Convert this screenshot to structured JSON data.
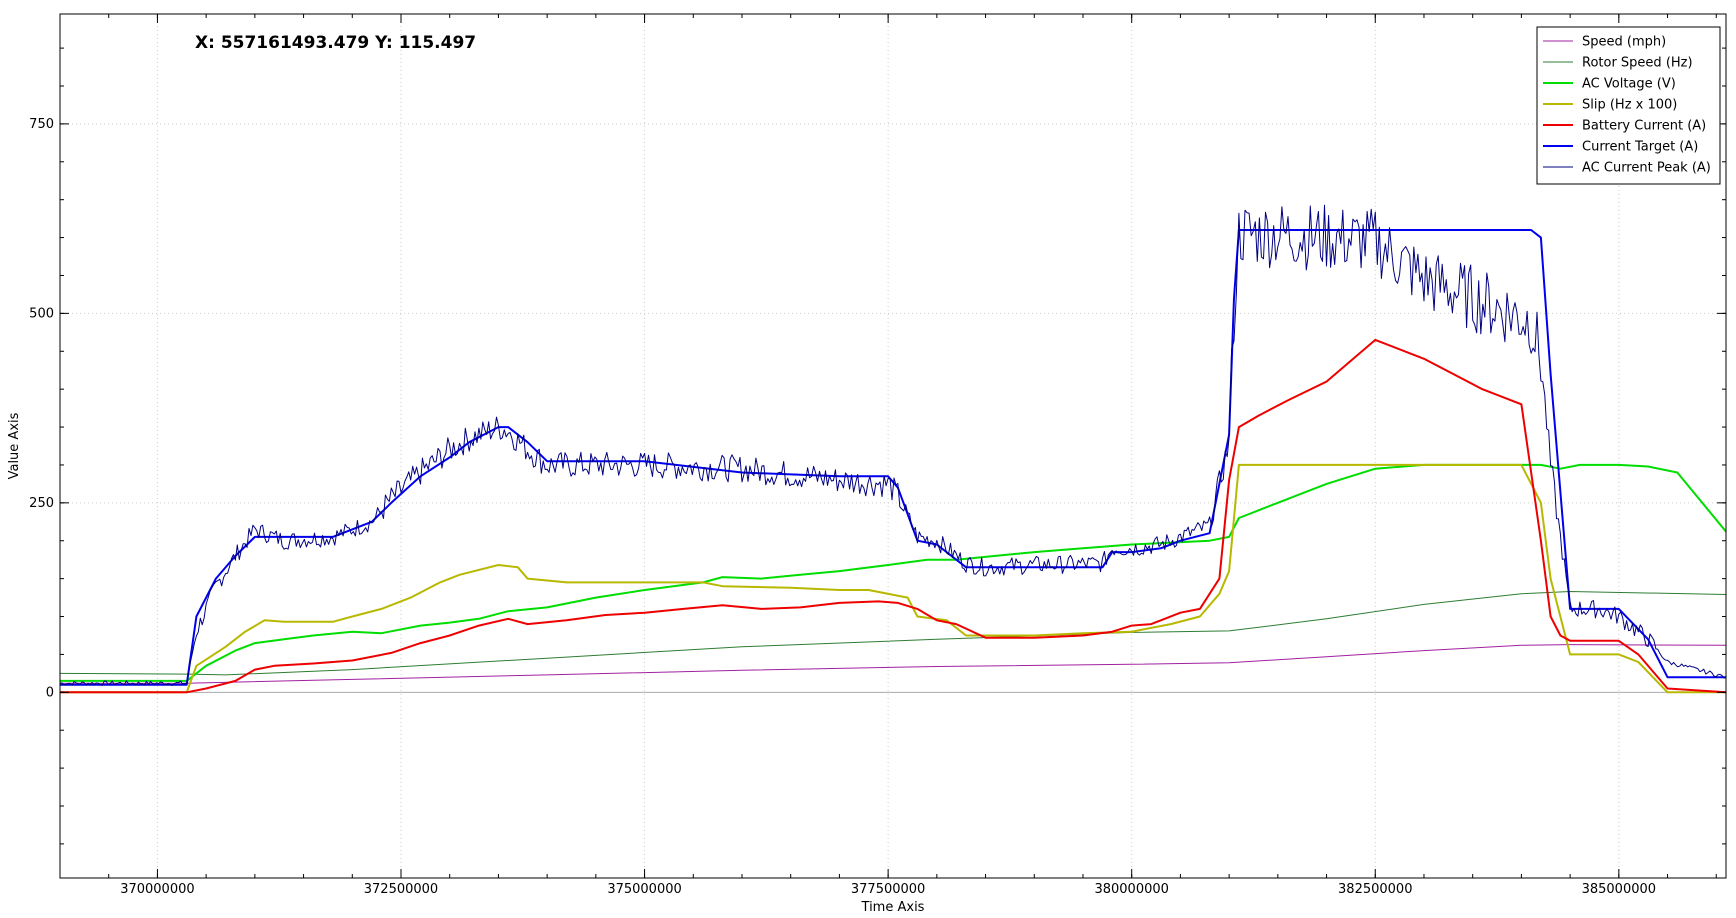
{
  "coordinate_readout": "X: 557161493.479 Y: 115.497",
  "chart_data": {
    "type": "line",
    "title": "",
    "xlabel": "Time Axis",
    "ylabel": "Value Axis",
    "xlim": [
      369000000,
      386100000
    ],
    "ylim": [
      -245,
      895
    ],
    "x_ticks": [
      370000000,
      372500000,
      375000000,
      377500000,
      380000000,
      382500000,
      385000000
    ],
    "x_tick_labels": [
      "370000000",
      "372500000",
      "375000000",
      "377500000",
      "380000000",
      "382500000",
      "385000000"
    ],
    "y_ticks": [
      0,
      250,
      500,
      750
    ],
    "y_tick_labels": [
      "0",
      "250",
      "500",
      "750"
    ],
    "grid": true,
    "legend_position": "top-right",
    "series": [
      {
        "name": "Speed (mph)",
        "color": "#a020a0",
        "width": 1,
        "x": [
          369000000,
          370300000,
          372000000,
          374000000,
          376000000,
          378000000,
          380000000,
          381000000,
          382000000,
          383000000,
          384000000,
          384500000,
          386100000
        ],
        "y": [
          12,
          12,
          17,
          23,
          29,
          34,
          37,
          39,
          47,
          55,
          62,
          63,
          62
        ]
      },
      {
        "name": "Rotor Speed (Hz)",
        "color": "#2e7d32",
        "width": 1,
        "x": [
          369000000,
          370300000,
          370700000,
          372000000,
          374000000,
          376000000,
          378000000,
          380000000,
          381000000,
          382000000,
          383000000,
          384000000,
          384500000,
          386100000
        ],
        "y": [
          25,
          24,
          23,
          30,
          45,
          60,
          70,
          79,
          81,
          97,
          116,
          130,
          133,
          129
        ]
      },
      {
        "name": "AC Voltage (V)",
        "color": "#00dd00",
        "width": 2,
        "x": [
          369000000,
          370300000,
          370500000,
          370800000,
          371000000,
          371300000,
          371600000,
          372000000,
          372300000,
          372700000,
          373000000,
          373300000,
          373600000,
          374000000,
          374500000,
          375000000,
          375600000,
          375800000,
          376200000,
          376600000,
          377000000,
          377500000,
          377900000,
          378200000,
          378600000,
          379000000,
          379500000,
          380000000,
          380800000,
          381000000,
          381100000,
          381500000,
          382000000,
          382500000,
          383000000,
          383500000,
          384200000,
          384400000,
          384600000,
          385000000,
          385300000,
          385600000,
          386100000
        ],
        "y": [
          15,
          15,
          35,
          55,
          65,
          70,
          75,
          80,
          78,
          88,
          92,
          97,
          107,
          112,
          125,
          135,
          145,
          152,
          150,
          155,
          160,
          168,
          175,
          175,
          180,
          185,
          190,
          195,
          200,
          205,
          230,
          250,
          275,
          295,
          300,
          300,
          300,
          295,
          300,
          300,
          298,
          290,
          212
        ]
      },
      {
        "name": "Slip (Hz x 100)",
        "color": "#b8b800",
        "width": 2,
        "x": [
          369000000,
          370300000,
          370400000,
          370700000,
          370900000,
          371100000,
          371300000,
          371800000,
          372000000,
          372300000,
          372600000,
          372900000,
          373100000,
          373500000,
          373700000,
          373800000,
          374200000,
          374700000,
          375000000,
          375600000,
          375800000,
          376500000,
          377000000,
          377300000,
          377700000,
          377800000,
          378100000,
          378300000,
          379000000,
          379500000,
          380000000,
          380200000,
          380400000,
          380700000,
          380900000,
          381000000,
          381100000,
          381500000,
          382000000,
          382500000,
          383000000,
          384000000,
          384200000,
          384300000,
          384500000,
          385000000,
          385200000,
          385500000,
          386100000
        ],
        "y": [
          0,
          0,
          35,
          60,
          80,
          95,
          93,
          93,
          100,
          110,
          125,
          145,
          155,
          168,
          165,
          150,
          145,
          145,
          145,
          145,
          140,
          138,
          135,
          135,
          125,
          100,
          95,
          75,
          75,
          78,
          80,
          85,
          90,
          100,
          130,
          160,
          300,
          300,
          300,
          300,
          300,
          300,
          250,
          150,
          50,
          50,
          40,
          0,
          0
        ]
      },
      {
        "name": "Battery Current (A)",
        "color": "#ee0000",
        "width": 2,
        "x": [
          369000000,
          370300000,
          370500000,
          370800000,
          371000000,
          371200000,
          371600000,
          372000000,
          372400000,
          372700000,
          373000000,
          373300000,
          373600000,
          373800000,
          374200000,
          374600000,
          375000000,
          375400000,
          375800000,
          376200000,
          376600000,
          377000000,
          377400000,
          377600000,
          377800000,
          378000000,
          378200000,
          378500000,
          379000000,
          379500000,
          379800000,
          380000000,
          380200000,
          380300000,
          380500000,
          380700000,
          380900000,
          381000000,
          381100000,
          381300000,
          381600000,
          382000000,
          382500000,
          383000000,
          383600000,
          384000000,
          384200000,
          384300000,
          384400000,
          384500000,
          384800000,
          385000000,
          385200000,
          385500000,
          386100000
        ],
        "y": [
          0,
          0,
          5,
          15,
          30,
          35,
          38,
          42,
          52,
          65,
          75,
          88,
          97,
          90,
          95,
          102,
          105,
          110,
          115,
          110,
          112,
          118,
          120,
          118,
          110,
          95,
          90,
          72,
          72,
          75,
          80,
          88,
          90,
          95,
          105,
          110,
          150,
          280,
          350,
          365,
          385,
          410,
          465,
          440,
          400,
          380,
          200,
          100,
          75,
          68,
          68,
          68,
          50,
          5,
          0
        ]
      },
      {
        "name": "Current Target (A)",
        "color": "#0000ee",
        "width": 2,
        "x": [
          369000000,
          370300000,
          370400000,
          370600000,
          370800000,
          371000000,
          371300000,
          371800000,
          372200000,
          372400000,
          372700000,
          373000000,
          373200000,
          373500000,
          373600000,
          373800000,
          374000000,
          375000000,
          376000000,
          377000000,
          377500000,
          377600000,
          377800000,
          378000000,
          378300000,
          378500000,
          379000000,
          379700000,
          379800000,
          380000000,
          380300000,
          380500000,
          380800000,
          381000000,
          381050000,
          381100000,
          381500000,
          382000000,
          382500000,
          383000000,
          383500000,
          384100000,
          384200000,
          384300000,
          384500000,
          384800000,
          385000000,
          385300000,
          385500000,
          386100000
        ],
        "y": [
          10,
          10,
          100,
          150,
          180,
          205,
          205,
          205,
          225,
          250,
          285,
          310,
          330,
          350,
          350,
          330,
          305,
          305,
          290,
          285,
          285,
          270,
          200,
          195,
          165,
          165,
          165,
          165,
          185,
          185,
          190,
          200,
          210,
          340,
          520,
          610,
          610,
          610,
          610,
          610,
          610,
          610,
          600,
          420,
          110,
          110,
          110,
          70,
          20,
          20
        ]
      },
      {
        "name": "AC Current Peak (A)",
        "color": "#000080",
        "width": 1,
        "noisy": true,
        "x": [
          369000000,
          370300000,
          370400000,
          370600000,
          370800000,
          371000000,
          371300000,
          371800000,
          372200000,
          372400000,
          372700000,
          373000000,
          373200000,
          373500000,
          373600000,
          373800000,
          374000000,
          375000000,
          376000000,
          377000000,
          377500000,
          377600000,
          377800000,
          378000000,
          378300000,
          378500000,
          379000000,
          379700000,
          379800000,
          380000000,
          380300000,
          380500000,
          380800000,
          381000000,
          381050000,
          381100000,
          381500000,
          382000000,
          382500000,
          383000000,
          383500000,
          384100000,
          384200000,
          384300000,
          384500000,
          384800000,
          385000000,
          385300000,
          385500000,
          386100000
        ],
        "y": [
          12,
          12,
          80,
          140,
          180,
          215,
          200,
          205,
          225,
          255,
          290,
          320,
          335,
          350,
          345,
          320,
          300,
          300,
          295,
          280,
          275,
          260,
          205,
          200,
          170,
          165,
          168,
          170,
          190,
          190,
          195,
          205,
          220,
          330,
          500,
          605,
          605,
          600,
          595,
          545,
          520,
          490,
          440,
          300,
          110,
          110,
          100,
          70,
          40,
          20
        ]
      }
    ]
  }
}
